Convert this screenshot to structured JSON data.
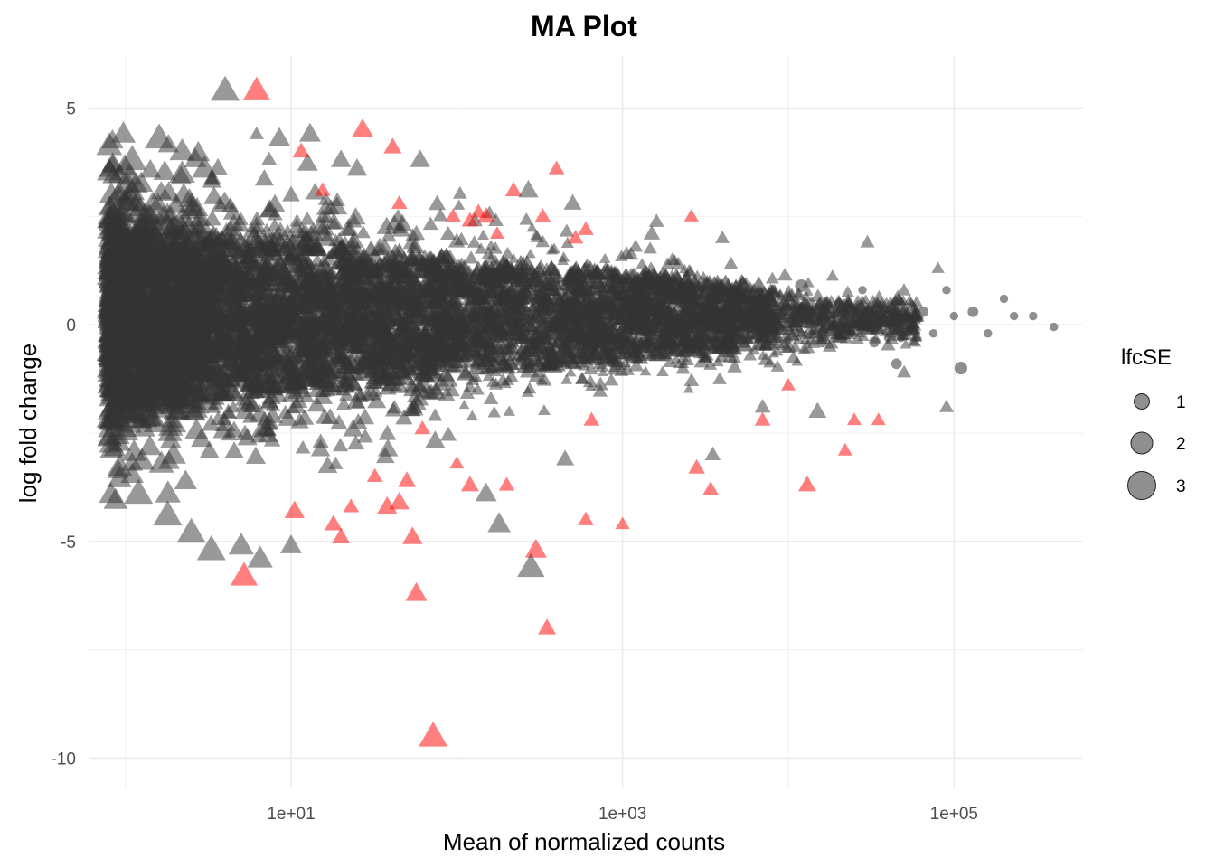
{
  "chart_data": {
    "type": "scatter",
    "title": "MA Plot",
    "xlabel": "Mean of normalized counts",
    "ylabel": "log fold change",
    "x_scale": "log10",
    "xlim": [
      0.6,
      600000
    ],
    "ylim": [
      -10.7,
      6.2
    ],
    "x_ticks": [
      {
        "value": 10,
        "label": "1e+01"
      },
      {
        "value": 1000,
        "label": "1e+03"
      },
      {
        "value": 100000,
        "label": "1e+05"
      }
    ],
    "y_ticks": [
      {
        "value": 5,
        "label": "5"
      },
      {
        "value": 0,
        "label": "0"
      },
      {
        "value": -5,
        "label": "-5"
      },
      {
        "value": -10,
        "label": "-10"
      }
    ],
    "grid": true,
    "theme": "minimal",
    "colors": {
      "not_significant": "#333333",
      "significant": "#ff0000",
      "grid": "#ebebeb"
    },
    "legend": {
      "title": "lfcSE",
      "position": "right",
      "items": [
        {
          "label": "1",
          "value": 1
        },
        {
          "label": "2",
          "value": 2
        },
        {
          "label": "3",
          "value": 3
        }
      ]
    },
    "series": [
      {
        "color": "#ff0000",
        "shape": "triangle",
        "points": [
          [
            6.2,
            5.4,
            2.8
          ],
          [
            11.5,
            4.0,
            1.4
          ],
          [
            15.5,
            3.1,
            1.2
          ],
          [
            27,
            4.5,
            2.0
          ],
          [
            41,
            4.1,
            1.5
          ],
          [
            45,
            2.8,
            1.2
          ],
          [
            95,
            2.5,
            1.2
          ],
          [
            120,
            2.4,
            1.3
          ],
          [
            135,
            2.6,
            1.2
          ],
          [
            150,
            2.5,
            1.5
          ],
          [
            175,
            2.1,
            1.0
          ],
          [
            220,
            3.1,
            1.3
          ],
          [
            330,
            2.5,
            1.2
          ],
          [
            400,
            3.6,
            1.2
          ],
          [
            520,
            2.0,
            1.2
          ],
          [
            600,
            2.2,
            1.2
          ],
          [
            2600,
            2.5,
            1.0
          ],
          [
            7000,
            -2.2,
            1.2
          ],
          [
            10000,
            -1.4,
            1.0
          ],
          [
            25000,
            -2.2,
            1.0
          ],
          [
            35000,
            -2.2,
            1.0
          ],
          [
            22000,
            -2.9,
            1.0
          ],
          [
            13000,
            -3.7,
            1.5
          ],
          [
            1000,
            -4.6,
            1.0
          ],
          [
            2800,
            -3.3,
            1.3
          ],
          [
            3400,
            -3.8,
            1.2
          ],
          [
            650,
            -2.2,
            1.2
          ],
          [
            600,
            -4.5,
            1.2
          ],
          [
            300,
            -5.2,
            2.0
          ],
          [
            350,
            -7.0,
            1.5
          ],
          [
            200,
            -3.7,
            1.2
          ],
          [
            120,
            -3.7,
            1.5
          ],
          [
            100,
            -3.2,
            1.0
          ],
          [
            62,
            -2.4,
            1.2
          ],
          [
            50,
            -3.6,
            1.5
          ],
          [
            45,
            -4.1,
            1.8
          ],
          [
            54,
            -4.9,
            1.8
          ],
          [
            57,
            -6.2,
            2.0
          ],
          [
            72,
            -9.5,
            3.0
          ],
          [
            32,
            -3.5,
            1.2
          ],
          [
            23,
            -4.2,
            1.2
          ],
          [
            18,
            -4.6,
            1.5
          ],
          [
            20,
            -4.9,
            1.5
          ],
          [
            10.5,
            -4.3,
            1.8
          ],
          [
            5.2,
            -5.8,
            2.8
          ],
          [
            38,
            -4.2,
            1.8
          ]
        ]
      },
      {
        "color": "#333333",
        "shape": "triangle",
        "points": [
          [
            4.0,
            5.4,
            3.0
          ],
          [
            8.5,
            4.3,
            2.0
          ],
          [
            13.0,
            4.4,
            2.0
          ],
          [
            60,
            3.8,
            1.8
          ],
          [
            270,
            3.1,
            1.8
          ],
          [
            1500,
            2.1,
            1.3
          ],
          [
            4000,
            2.0,
            1.0
          ],
          [
            30000,
            1.9,
            1.0
          ],
          [
            2000,
            1.5,
            1.0
          ],
          [
            1200,
            1.8,
            1.0
          ],
          [
            80000,
            1.3,
            0.8
          ],
          [
            5.0,
            -5.1,
            2.5
          ],
          [
            6.5,
            -5.4,
            2.5
          ],
          [
            10.0,
            -5.1,
            2.0
          ],
          [
            180,
            -4.6,
            2.2
          ],
          [
            150,
            -3.9,
            2.0
          ],
          [
            280,
            -5.6,
            2.8
          ],
          [
            90000,
            -1.9,
            1.0
          ],
          [
            15000,
            -2.0,
            1.5
          ],
          [
            50000,
            -1.1,
            1.0
          ],
          [
            1.6,
            4.3,
            3.0
          ],
          [
            1.1,
            3.8,
            3.0
          ],
          [
            2.2,
            4.0,
            2.5
          ],
          [
            3.0,
            3.6,
            2.5
          ],
          [
            3.3,
            -5.2,
            3.0
          ],
          [
            2.5,
            -4.8,
            3.0
          ],
          [
            1.8,
            -4.4,
            3.0
          ],
          [
            1.2,
            -3.9,
            3.0
          ],
          [
            20,
            3.8,
            1.8
          ],
          [
            25,
            3.6,
            1.8
          ],
          [
            500,
            2.8,
            1.5
          ],
          [
            450,
            -3.1,
            1.5
          ],
          [
            3500,
            -3.0,
            1.2
          ],
          [
            7000,
            -1.9,
            1.2
          ]
        ]
      },
      {
        "color": "#333333",
        "shape": "circle",
        "points": [
          [
            12000,
            0.9,
            2.0
          ],
          [
            16000,
            -0.4,
            1.5
          ],
          [
            20000,
            0.5,
            1.0
          ],
          [
            24000,
            -0.2,
            1.0
          ],
          [
            28000,
            0.8,
            1.0
          ],
          [
            33000,
            -0.4,
            1.5
          ],
          [
            40000,
            -0.3,
            1.0
          ],
          [
            45000,
            -0.9,
            1.5
          ],
          [
            55000,
            0.1,
            1.0
          ],
          [
            65000,
            0.3,
            1.5
          ],
          [
            75000,
            -0.2,
            1.0
          ],
          [
            90000,
            0.8,
            1.0
          ],
          [
            100000,
            0.2,
            1.0
          ],
          [
            110000,
            -1.0,
            2.0
          ],
          [
            130000,
            0.3,
            1.5
          ],
          [
            160000,
            -0.2,
            1.0
          ],
          [
            200000,
            0.6,
            1.0
          ],
          [
            230000,
            0.2,
            1.0
          ],
          [
            300000,
            0.2,
            1.0
          ],
          [
            400000,
            -0.05,
            1.0
          ],
          [
            35000,
            0.4,
            1.5
          ],
          [
            48000,
            -0.3,
            1.0
          ]
        ]
      }
    ],
    "cloud": {
      "description": "dense cloud of grey triangles, center near 0, spread narrowing with counts",
      "x_range": [
        0.8,
        60000
      ]
    }
  }
}
